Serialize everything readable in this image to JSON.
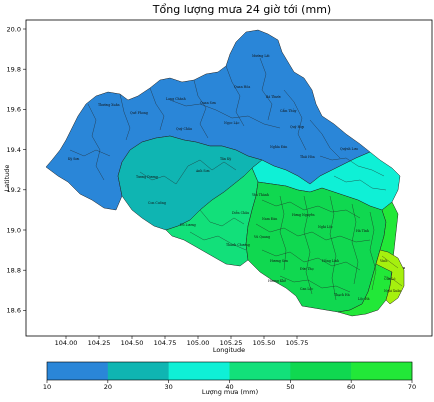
{
  "title": "Tổng lượng mưa 24 giờ tới (mm)",
  "axes": {
    "xlabel": "Longitude",
    "ylabel": "Latitude",
    "xticks": [
      "104.00",
      "104.25",
      "104.50",
      "104.75",
      "105.00",
      "105.25",
      "105.50",
      "105.75"
    ],
    "yticks": [
      "20.0",
      "19.8",
      "19.6",
      "19.4",
      "19.2",
      "19.0",
      "18.8",
      "18.6"
    ]
  },
  "colorbar": {
    "label": "Lượng mưa (mm)",
    "ticks": [
      "10",
      "20",
      "30",
      "40",
      "50",
      "60",
      "70"
    ],
    "colors": [
      "#2a86d8",
      "#0fb5b2",
      "#0ff0d6",
      "#12e07a",
      "#10d850",
      "#22e838",
      "#a6f00e"
    ]
  },
  "regions": [
    {
      "name": "Thường Xuân",
      "color": "#2a86d8"
    },
    {
      "name": "Bá Thước",
      "color": "#2a86d8"
    },
    {
      "name": "Quan Hóa",
      "color": "#2a86d8"
    },
    {
      "name": "Mường Lát",
      "color": "#2a86d8"
    },
    {
      "name": "Quan Sơn",
      "color": "#2a86d8"
    },
    {
      "name": "Lang Chánh",
      "color": "#2a86d8"
    },
    {
      "name": "Ngọc Lặc",
      "color": "#2a86d8"
    },
    {
      "name": "Cẩm Thủy",
      "color": "#2a86d8"
    },
    {
      "name": "Quế Phong",
      "color": "#0fb5b2"
    },
    {
      "name": "Quỳ Châu",
      "color": "#0fb5b2"
    },
    {
      "name": "Quỳ Hợp",
      "color": "#0fb5b2"
    },
    {
      "name": "Kỳ Sơn",
      "color": "#0fb5b2"
    },
    {
      "name": "Tương Dương",
      "color": "#0fb5b2"
    },
    {
      "name": "Con Cuông",
      "color": "#12e07a"
    },
    {
      "name": "Anh Sơn",
      "color": "#12e07a"
    },
    {
      "name": "Tân Kỳ",
      "color": "#12e07a"
    },
    {
      "name": "Nghĩa Đàn",
      "color": "#0ff0d6"
    },
    {
      "name": "Thái Hòa",
      "color": "#0ff0d6"
    },
    {
      "name": "Quỳnh Lưu",
      "color": "#0ff0d6"
    },
    {
      "name": "Yên Thành",
      "color": "#10d850"
    },
    {
      "name": "Diễn Châu",
      "color": "#10d850"
    },
    {
      "name": "Đô Lương",
      "color": "#10d850"
    },
    {
      "name": "Thanh Chương",
      "color": "#10d850"
    },
    {
      "name": "Nam Đàn",
      "color": "#22e838"
    },
    {
      "name": "Hưng Nguyên",
      "color": "#22e838"
    },
    {
      "name": "Nghi Lộc",
      "color": "#22e838"
    },
    {
      "name": "Vinh",
      "color": "#a6f00e"
    },
    {
      "name": "Cửa Lò",
      "color": "#a6f00e"
    },
    {
      "name": "Hương Sơn",
      "color": "#10d850"
    },
    {
      "name": "Đức Thọ",
      "color": "#22e838"
    },
    {
      "name": "Nghi Xuân",
      "color": "#a6f00e"
    },
    {
      "name": "Hồng Lĩnh",
      "color": "#a6f00e"
    },
    {
      "name": "Can Lộc",
      "color": "#22e838"
    },
    {
      "name": "Hương Khê",
      "color": "#10d850"
    },
    {
      "name": "Thạch Hà",
      "color": "#22e838"
    },
    {
      "name": "Lộc Hà",
      "color": "#a6f00e"
    },
    {
      "name": "Hà Tĩnh",
      "color": "#a6f00e"
    },
    {
      "name": "Vũ Quang",
      "color": "#10d850"
    }
  ]
}
